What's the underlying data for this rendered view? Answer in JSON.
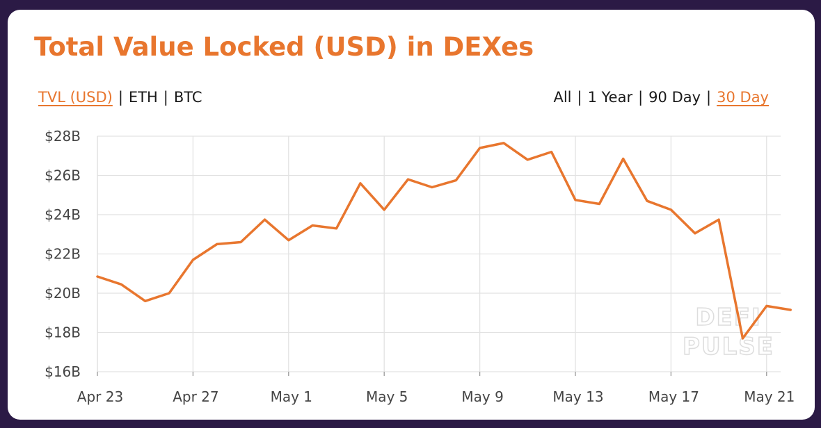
{
  "title": "Total Value Locked (USD) in DEXes",
  "metric_toggle": {
    "options": [
      "TVL (USD)",
      "ETH",
      "BTC"
    ],
    "selected": "TVL (USD)"
  },
  "range_toggle": {
    "options": [
      "All",
      "1 Year",
      "90 Day",
      "30 Day"
    ],
    "selected": "30 Day"
  },
  "watermark": [
    "DEFI",
    "PULSE"
  ],
  "colors": {
    "accent": "#e8762e",
    "background": "#2b1a45",
    "grid": "#e2e2e2"
  },
  "chart_data": {
    "type": "line",
    "title": "Total Value Locked (USD) in DEXes",
    "xlabel": "",
    "ylabel": "",
    "x": [
      "Apr 23",
      "Apr 24",
      "Apr 25",
      "Apr 26",
      "Apr 27",
      "Apr 28",
      "Apr 29",
      "Apr 30",
      "May 1",
      "May 2",
      "May 3",
      "May 4",
      "May 5",
      "May 6",
      "May 7",
      "May 8",
      "May 9",
      "May 10",
      "May 11",
      "May 12",
      "May 13",
      "May 14",
      "May 15",
      "May 16",
      "May 17",
      "May 18",
      "May 19",
      "May 20",
      "May 21",
      "May 22"
    ],
    "series": [
      {
        "name": "",
        "values": [
          20.85,
          20.45,
          19.6,
          20.0,
          21.7,
          22.5,
          22.6,
          23.75,
          22.7,
          23.45,
          23.3,
          25.6,
          24.25,
          25.8,
          25.4,
          25.75,
          27.4,
          27.65,
          26.8,
          27.2,
          24.75,
          24.55,
          26.85,
          24.7,
          24.25,
          23.05,
          23.75,
          17.7,
          19.35,
          19.15
        ]
      }
    ],
    "x_ticks": [
      "Apr 23",
      "Apr 27",
      "May 1",
      "May 5",
      "May 9",
      "May 13",
      "May 17",
      "May 21"
    ],
    "y_ticks": [
      16,
      18,
      20,
      22,
      24,
      26,
      28
    ],
    "y_tick_labels": [
      "$16B",
      "$18B",
      "$20B",
      "$22B",
      "$24B",
      "$26B",
      "$28B"
    ],
    "ylim": [
      16,
      28
    ],
    "grid": true,
    "legend": "none",
    "color": "#e8762e"
  }
}
